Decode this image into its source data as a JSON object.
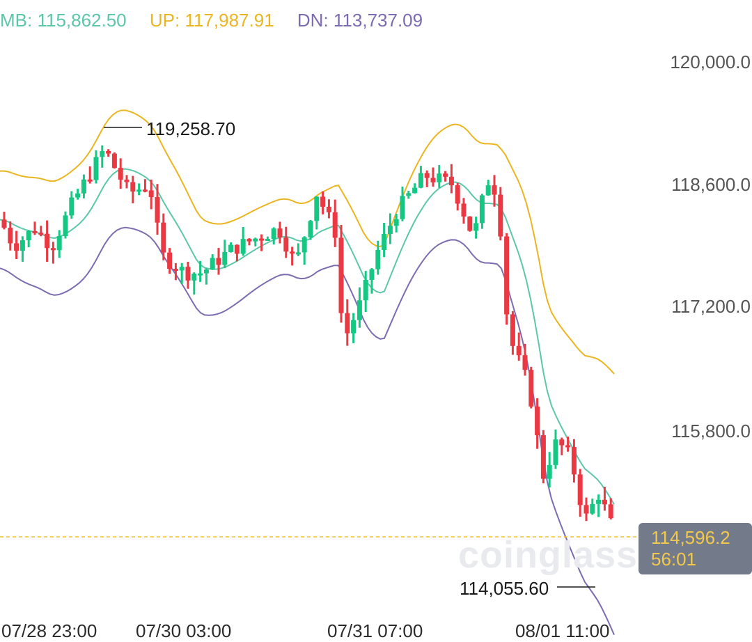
{
  "legend": {
    "mb": "MB: 115,862.50",
    "up": "UP: 117,987.91",
    "dn": "DN: 113,737.09"
  },
  "colors": {
    "up_candle": "#16c784",
    "down_candle": "#ea3943",
    "mb": "#5cc7a8",
    "up": "#eab520",
    "dn": "#7c6bb0",
    "last_line": "#f0c030"
  },
  "watermark": "coinglass",
  "current_price": {
    "price": "114,596.2",
    "countdown": "56:01"
  },
  "annotations": {
    "high": "119,258.70",
    "low": "114,055.60"
  },
  "chart_data": {
    "type": "candlestick",
    "indicator": "Bollinger Bands",
    "y_axis_labels": [
      "120,000.0",
      "118,600.0",
      "117,200.0",
      "115,800.0"
    ],
    "x_axis_labels": [
      "07/28 23:00",
      "07/30 03:00",
      "07/31 07:00",
      "08/01 11:00"
    ],
    "ylim": [
      113800,
      120600
    ],
    "grid": false,
    "last_price": 114596.2,
    "high_marker": 119258.7,
    "low_marker": 114055.6,
    "legend_values": {
      "MB": 115862.5,
      "UP": 117987.91,
      "DN": 113737.09
    }
  }
}
